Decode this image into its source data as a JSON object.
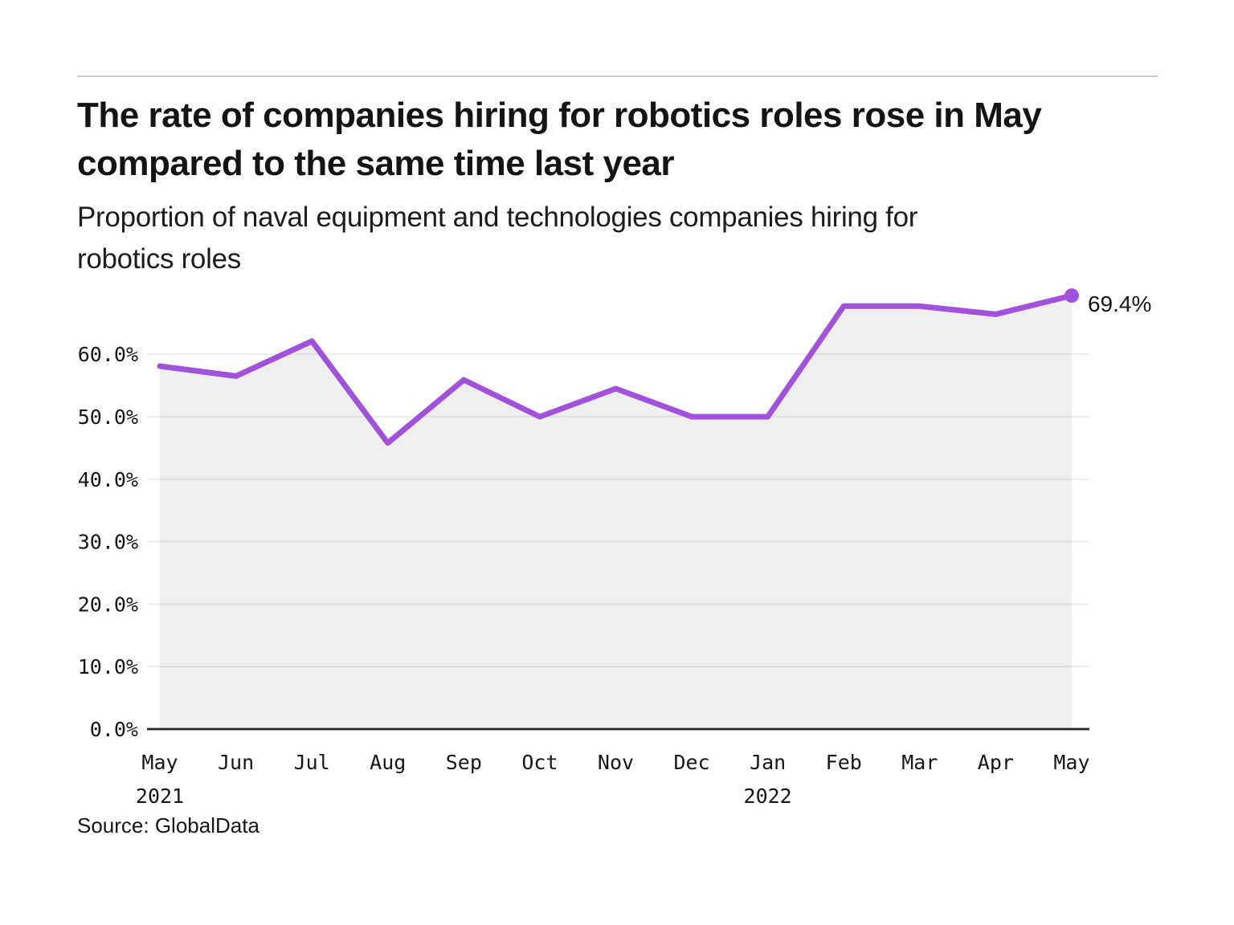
{
  "header": {
    "title": "The rate of companies hiring for robotics roles rose in May\ncompared to the same time last year",
    "subtitle": "Proportion of naval equipment and technologies companies hiring for\nrobotics roles"
  },
  "footer": {
    "source": "Source: GlobalData"
  },
  "chart_data": {
    "type": "area",
    "title": "The rate of companies hiring for robotics roles rose in May compared to the same time last year",
    "subtitle": "Proportion of naval equipment and technologies companies hiring for robotics roles",
    "categories": [
      "May",
      "Jun",
      "Jul",
      "Aug",
      "Sep",
      "Oct",
      "Nov",
      "Dec",
      "Jan",
      "Feb",
      "Mar",
      "Apr",
      "May"
    ],
    "year_labels": [
      {
        "index": 0,
        "text": "2021"
      },
      {
        "index": 8,
        "text": "2022"
      }
    ],
    "values": [
      58.1,
      56.5,
      62.1,
      45.8,
      55.9,
      50.0,
      54.5,
      50.0,
      50.0,
      67.7,
      67.7,
      66.4,
      69.4
    ],
    "end_label": "69.4%",
    "ytick_labels": [
      "0.0%",
      "10.0%",
      "20.0%",
      "30.0%",
      "40.0%",
      "50.0%",
      "60.0%"
    ],
    "ytick_values": [
      0,
      10,
      20,
      30,
      40,
      50,
      60
    ],
    "ylim": [
      0,
      73
    ],
    "grid": true,
    "legend": "none",
    "colors": {
      "line": "#A152DB",
      "marker": "#A152DB",
      "area_fill": "#EFEFEF",
      "gridline": "rgba(0,0,0,0.075)",
      "axis": "#262626",
      "text": "#161616",
      "rule": "#C9C9C9"
    }
  }
}
